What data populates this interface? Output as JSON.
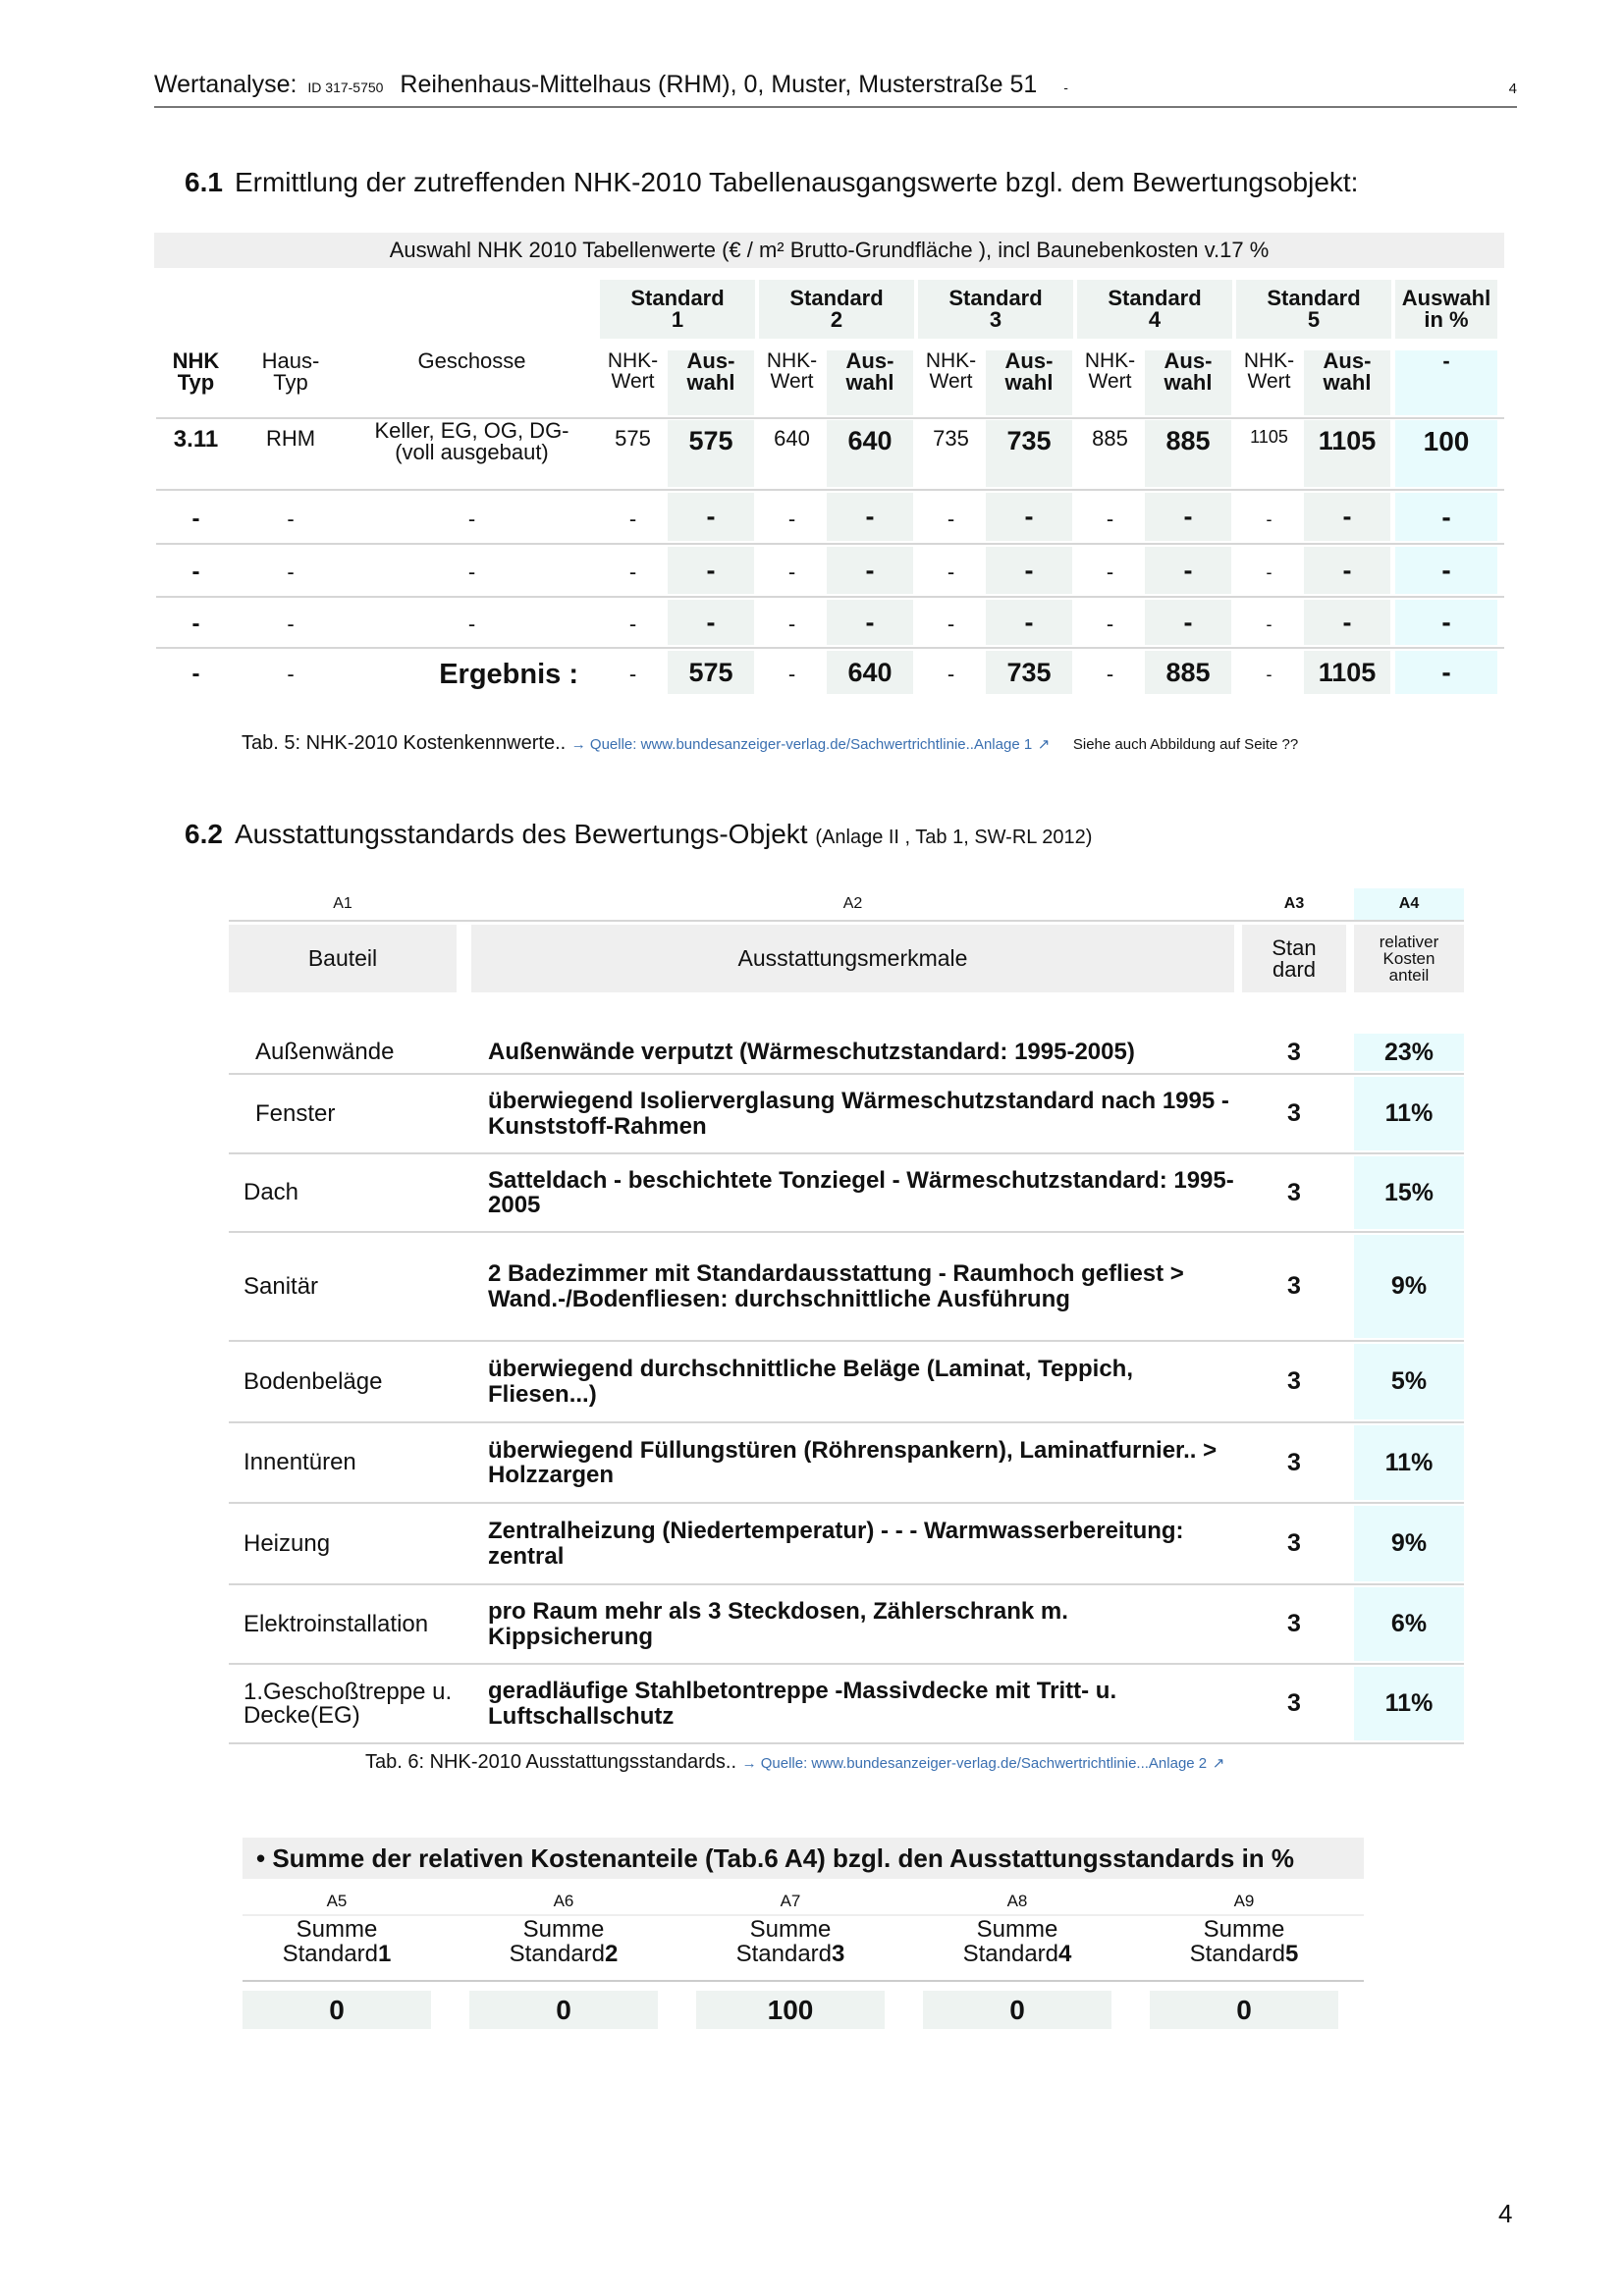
{
  "header": {
    "prefix": "Wertanalyse:",
    "id": "ID 317-5750",
    "title": "Reihenhaus-Mittelhaus (RHM), 0, Muster, Musterstraße 51",
    "dash": "-",
    "page": "4"
  },
  "section61": {
    "number": "6.1",
    "title": "Ermittlung der zutreffenden NHK-2010 Tabellenausgangswerte bzgl. dem Bewertungsobjekt:"
  },
  "table5": {
    "banner": "Auswahl NHK 2010 Tabellenwerte (€ / m² Brutto-Grundfläche ), incl Baunebenkosten v.17 %",
    "standards": [
      "Standard 1",
      "Standard 2",
      "Standard 3",
      "Standard 4",
      "Standard 5"
    ],
    "auswahl_header": "Auswahl in %",
    "col_headers": {
      "typ": "NHK Typ",
      "haus": "Haus-Typ",
      "geschosse": "Geschosse",
      "nhk": "NHK-Wert",
      "aus": "Aus-wahl",
      "pct": "-"
    },
    "rows": [
      {
        "typ": "3.11",
        "haus": "RHM",
        "geschosse": "Keller, EG, OG, DG- (voll ausgebaut)",
        "vals": [
          [
            "575",
            "575"
          ],
          [
            "640",
            "640"
          ],
          [
            "735",
            "735"
          ],
          [
            "885",
            "885"
          ],
          [
            "1105",
            "1105"
          ]
        ],
        "pct": "100"
      },
      {
        "typ": "-",
        "haus": "-",
        "geschosse": "-",
        "vals": [
          [
            "-",
            "-"
          ],
          [
            "-",
            "-"
          ],
          [
            "-",
            "-"
          ],
          [
            "-",
            "-"
          ],
          [
            "-",
            "-"
          ]
        ],
        "pct": "-"
      },
      {
        "typ": "-",
        "haus": "-",
        "geschosse": "-",
        "vals": [
          [
            "-",
            "-"
          ],
          [
            "-",
            "-"
          ],
          [
            "-",
            "-"
          ],
          [
            "-",
            "-"
          ],
          [
            "-",
            "-"
          ]
        ],
        "pct": "-"
      },
      {
        "typ": "-",
        "haus": "-",
        "geschosse": "-",
        "vals": [
          [
            "-",
            "-"
          ],
          [
            "-",
            "-"
          ],
          [
            "-",
            "-"
          ],
          [
            "-",
            "-"
          ],
          [
            "-",
            "-"
          ]
        ],
        "pct": "-"
      },
      {
        "typ": "-",
        "haus": "-",
        "geschosse": "Ergebnis :",
        "vals": [
          [
            "-",
            "575"
          ],
          [
            "-",
            "640"
          ],
          [
            "-",
            "735"
          ],
          [
            "-",
            "885"
          ],
          [
            "-",
            "1105"
          ]
        ],
        "pct": "-"
      }
    ],
    "caption": "Tab. 5: NHK-2010 Kostenkennwerte..",
    "source": "→ Quelle: www.bundesanzeiger-verlag.de/Sachwertrichtlinie..Anlage 1",
    "note": "Siehe auch Abbildung  auf Seite ??"
  },
  "section62": {
    "number": "6.2",
    "title": "Ausstattungsstandards des Bewertungs-Objekt",
    "subtitle": "(Anlage II , Tab 1, SW-RL 2012)"
  },
  "table6": {
    "col_ids": [
      "A1",
      "A2",
      "A3",
      "A4"
    ],
    "headers": [
      "Bauteil",
      "Ausstattungsmerkmale",
      "Stan dard",
      "relativer Kosten anteil"
    ],
    "rows": [
      {
        "bauteil": "Außenwände",
        "merkmal": "Außenwände verputzt (Wärmeschutzstandard: 1995-2005)",
        "standard": "3",
        "anteil": "23%"
      },
      {
        "bauteil": "Fenster",
        "merkmal": "überwiegend Isolierverglasung  Wärmeschutzstandard nach 1995 - Kunststoff-Rahmen",
        "standard": "3",
        "anteil": "11%"
      },
      {
        "bauteil": "Dach",
        "merkmal": "Satteldach - beschichtete Tonziegel - Wärmeschutzstandard: 1995-2005",
        "standard": "3",
        "anteil": "15%"
      },
      {
        "bauteil": "Sanitär",
        "merkmal": "2 Badezimmer mit Standardausstattung - Raumhoch gefliest > Wand.-/Bodenfliesen: durchschnittliche Ausführung",
        "standard": "3",
        "anteil": "9%"
      },
      {
        "bauteil": "Bodenbeläge",
        "merkmal": "überwiegend durchschnittliche Beläge (Laminat, Teppich, Fliesen...)",
        "standard": "3",
        "anteil": "5%"
      },
      {
        "bauteil": "Innentüren",
        "merkmal": "überwiegend Füllungstüren (Röhrenspankern), Laminatfurnier.. > Holzzargen",
        "standard": "3",
        "anteil": "11%"
      },
      {
        "bauteil": "Heizung",
        "merkmal": "Zentralheizung (Niedertemperatur) - - - Warmwasserbereitung: zentral",
        "standard": "3",
        "anteil": "9%"
      },
      {
        "bauteil": "Elektroinstallation",
        "merkmal": "pro Raum mehr als 3 Steckdosen, Zählerschrank m. Kippsicherung",
        "standard": "3",
        "anteil": "6%"
      },
      {
        "bauteil": "1.Geschoßtreppe u. Decke(EG)",
        "merkmal": "geradläufige Stahlbetontreppe -Massivdecke mit Tritt- u. Luftschallschutz",
        "standard": "3",
        "anteil": "11%"
      }
    ],
    "caption": "Tab. 6: NHK-2010 Ausstattungsstandards..",
    "source": "→ Quelle: www.bundesanzeiger-verlag.de/Sachwertrichtlinie...Anlage 2"
  },
  "summary": {
    "title": "• Summe der relativen Kostenanteile (Tab.6 A4) bzgl. den Ausstattungsstandards in %",
    "items": [
      {
        "id": "A5",
        "label": "Summe",
        "std": "Standard 1",
        "value": "0"
      },
      {
        "id": "A6",
        "label": "Summe",
        "std": "Standard 2",
        "value": "0"
      },
      {
        "id": "A7",
        "label": "Summe",
        "std": "Standard 3",
        "value": "100"
      },
      {
        "id": "A8",
        "label": "Summe",
        "std": "Standard 4",
        "value": "0"
      },
      {
        "id": "A9",
        "label": "Summe",
        "std": "Standard 5",
        "value": "0"
      }
    ]
  },
  "footer": {
    "page": "4"
  },
  "colors": {
    "teal_cell": "#eef3f1",
    "cyan_cell": "#e8fbfd",
    "gray_cell": "#efefef",
    "link": "#3a6fb0"
  }
}
